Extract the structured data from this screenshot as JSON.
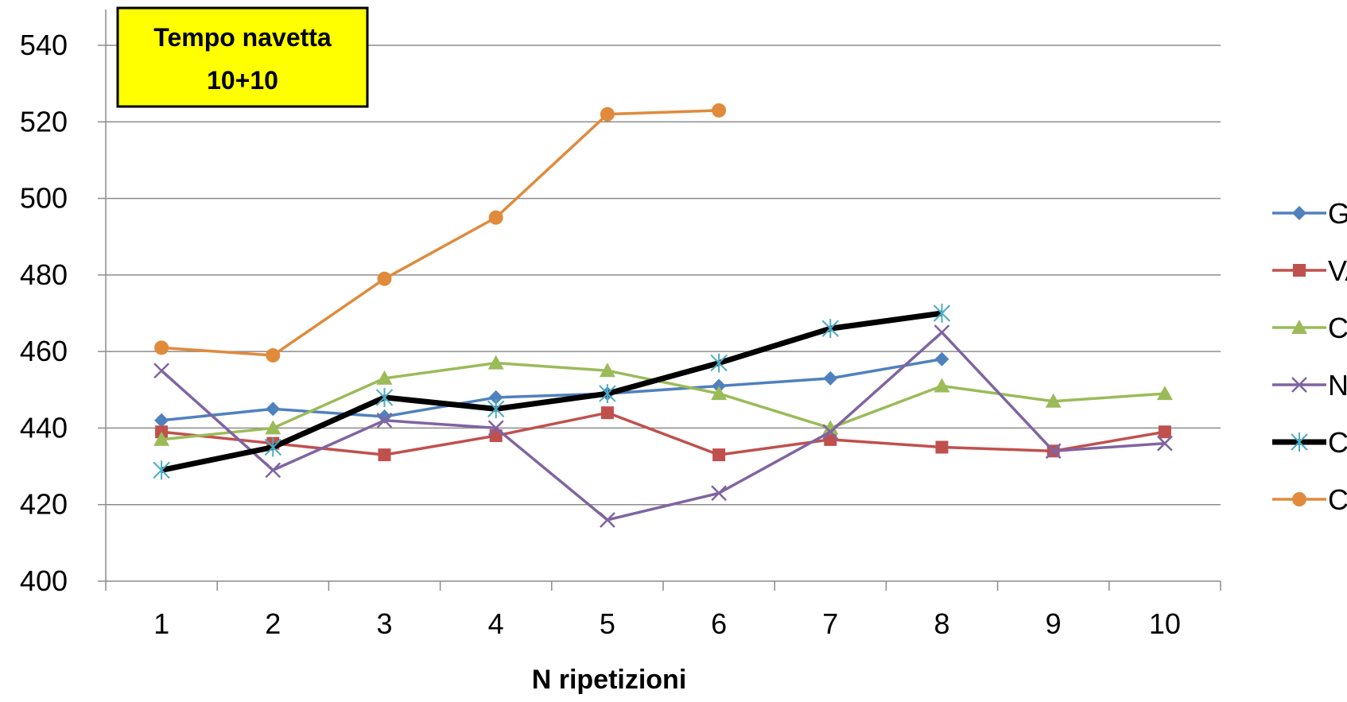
{
  "chart_data": {
    "type": "line",
    "annotation": [
      "Tempo navetta",
      "10+10"
    ],
    "xlabel": "N ripetizioni",
    "ylabel": "",
    "categories": [
      "1",
      "2",
      "3",
      "4",
      "5",
      "6",
      "7",
      "8",
      "9",
      "10"
    ],
    "ylim": [
      400,
      540
    ],
    "yticks": [
      "400",
      "420",
      "440",
      "460",
      "480",
      "500",
      "520",
      "540"
    ],
    "grid": true,
    "legend_position": "right",
    "series": [
      {
        "name": "GL",
        "color": "#4f81bd",
        "marker": "diamond",
        "values": [
          442,
          445,
          443,
          448,
          449,
          451,
          453,
          458,
          null,
          null
        ]
      },
      {
        "name": "VA",
        "color": "#c0504d",
        "marker": "square",
        "values": [
          439,
          436,
          433,
          438,
          444,
          433,
          437,
          435,
          434,
          439
        ]
      },
      {
        "name": "CS",
        "color": "#9bbb59",
        "marker": "triangle",
        "values": [
          437,
          440,
          453,
          457,
          455,
          449,
          440,
          451,
          447,
          449
        ]
      },
      {
        "name": "NT",
        "color": "#8064a2",
        "marker": "x",
        "values": [
          455,
          429,
          442,
          440,
          416,
          423,
          439,
          465,
          434,
          436
        ]
      },
      {
        "name": "CC",
        "color": "#000000",
        "marker": "star",
        "marker_color": "#4bacc6",
        "bold": true,
        "values": [
          429,
          435,
          448,
          445,
          449,
          457,
          466,
          470,
          null,
          null
        ]
      },
      {
        "name": "CF",
        "color": "#e08a3c",
        "marker": "circle",
        "values": [
          461,
          459,
          479,
          495,
          522,
          523,
          null,
          null,
          null,
          null
        ]
      }
    ]
  }
}
